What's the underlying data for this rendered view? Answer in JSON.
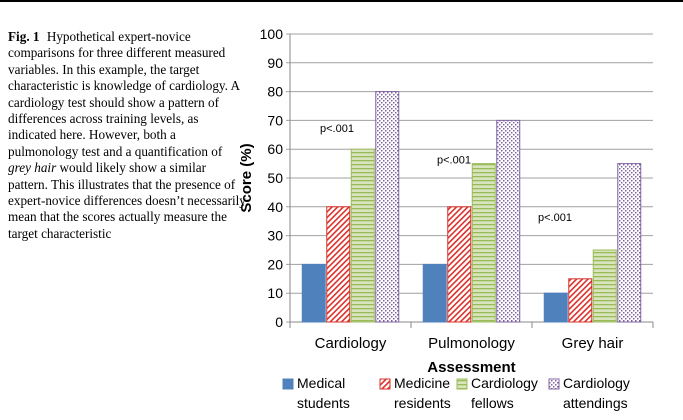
{
  "caption": {
    "label": "Fig. 1",
    "text_before_italic": "Hypothetical expert-novice comparisons for three different measured variables. In this example, the target characteristic is knowledge of cardiology. A cardiology test should show a pattern of differences across training levels, as indicated here. However, both a pulmonology test and a quantification of",
    "italic_text": "grey hair",
    "text_after_italic": "would likely show a similar pattern. This illustrates that the presence of expert-novice differences doesn’t necessarily mean that the scores actually measure the target characteristic"
  },
  "colors": {
    "medical_students": "#4f81bd",
    "medicine_residents": "#d9312b",
    "cardiology_fellows": "#9bbb59",
    "cardiology_attendings": "#8064a2",
    "axis": "#888888",
    "gridline": "#a0a0a0"
  },
  "chart_data": {
    "type": "bar",
    "categories": [
      "Cardiology",
      "Pulmonology",
      "Grey hair"
    ],
    "series": [
      {
        "name": "Medical students",
        "legend_lines": [
          "Medical",
          "students"
        ],
        "values": [
          20,
          20,
          10
        ]
      },
      {
        "name": "Medicine residents",
        "legend_lines": [
          "Medicine",
          "residents"
        ],
        "values": [
          40,
          40,
          15
        ]
      },
      {
        "name": "Cardiology fellows",
        "legend_lines": [
          "Cardiology",
          "fellows"
        ],
        "values": [
          60,
          55,
          25
        ]
      },
      {
        "name": "Cardiology attendings",
        "legend_lines": [
          "Cardiology",
          "attendings"
        ],
        "values": [
          80,
          70,
          55
        ]
      }
    ],
    "annotations": [
      "p<.001",
      "p<.001",
      "p<.001"
    ],
    "xlabel": "Assessment",
    "ylabel": "Score (%)",
    "ylim": [
      0,
      100
    ],
    "yticks": [
      0,
      10,
      20,
      30,
      40,
      50,
      60,
      70,
      80,
      90,
      100
    ],
    "grid": "horizontal",
    "legend_position": "bottom"
  }
}
